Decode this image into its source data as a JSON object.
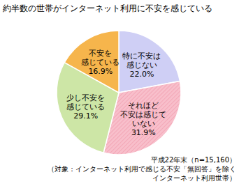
{
  "chart_data": {
    "type": "pie",
    "title": "約半数の世帯がインターネット利用に不安を感じている",
    "categories": [
      "特に不安は\n感じない",
      "それほど\n不安は感じて\nいない",
      "少し不安を\n感じている",
      "不安を\n感じている"
    ],
    "values": [
      22.0,
      31.9,
      29.1,
      16.9
    ],
    "value_labels": [
      "22.0%",
      "31.9%",
      "29.1%",
      "16.9%"
    ],
    "colors": [
      "#cfcff5",
      "#f8bfcb",
      "#cde6a6",
      "#f6b54c"
    ],
    "data_labels": true,
    "annotations": [
      "平成22年末（n=15,160）",
      "（対象：インターネット利用で感じる不安「無回答」を除く",
      "インターネット利用世帯）"
    ]
  }
}
